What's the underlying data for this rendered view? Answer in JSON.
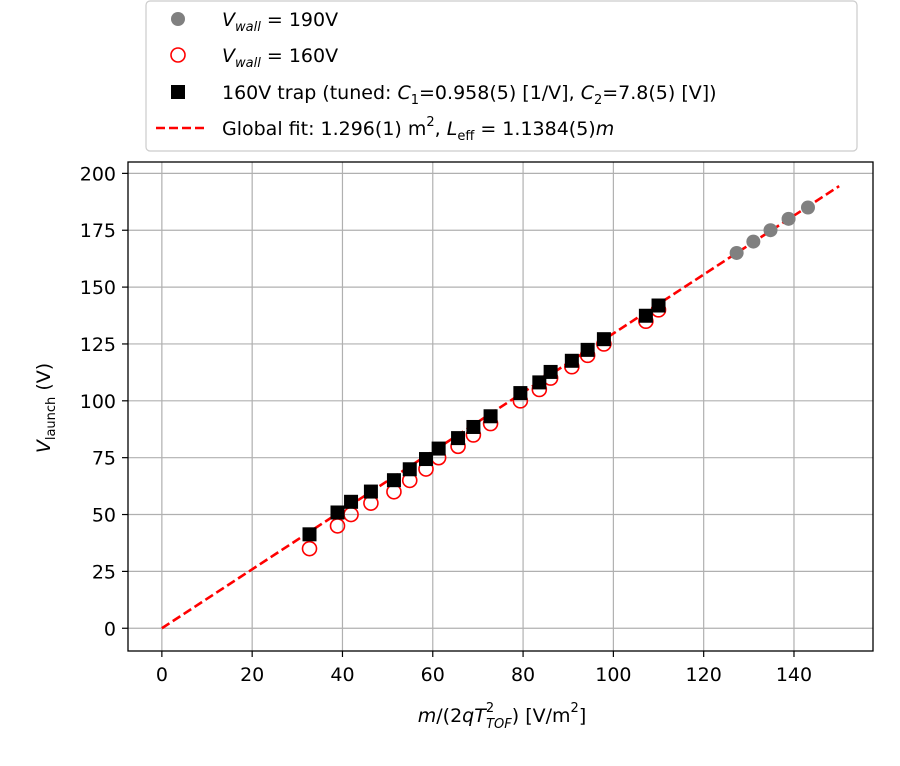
{
  "chart_data": {
    "type": "scatter",
    "title": "",
    "xlabel": "m/(2qT_TOF^2)  [V/m^2]",
    "ylabel": "V_launch (V)",
    "xlim": [
      -7.5,
      157.5
    ],
    "ylim": [
      -10,
      205
    ],
    "grid": true,
    "legend_position": "top-center",
    "x_ticks": [
      0,
      20,
      40,
      60,
      80,
      100,
      120,
      140
    ],
    "y_ticks": [
      0,
      25,
      50,
      75,
      100,
      125,
      150,
      175,
      200
    ],
    "series": [
      {
        "name": "V_wall = 190V",
        "marker": "circle-filled",
        "color": "#808080",
        "x": [
          127.3,
          131.0,
          134.8,
          138.8,
          143.1
        ],
        "y": [
          165,
          170,
          175,
          180,
          185
        ]
      },
      {
        "name": "V_wall = 160V",
        "marker": "circle-open",
        "color": "#ff0000",
        "x": [
          32.7,
          38.9,
          41.9,
          46.3,
          51.4,
          54.9,
          58.5,
          61.3,
          65.6,
          69.0,
          72.8,
          79.4,
          83.6,
          86.1,
          90.8,
          94.3,
          97.9,
          107.2,
          110.0
        ],
        "y": [
          35,
          45,
          50,
          55,
          60,
          65,
          70,
          75,
          80,
          85,
          90,
          100,
          105,
          110,
          115,
          120,
          125,
          135,
          140
        ]
      },
      {
        "name": "160V trap (tuned: C1=0.958(5) [1/V], C2=7.8(5) [V])",
        "marker": "square-filled",
        "color": "#000000",
        "x": [
          32.7,
          38.9,
          41.9,
          46.3,
          51.4,
          54.9,
          58.5,
          61.3,
          65.6,
          69.0,
          72.8,
          79.4,
          83.6,
          86.1,
          90.8,
          94.3,
          97.9,
          107.2,
          110.0
        ],
        "y": [
          41.3,
          50.9,
          55.6,
          60.1,
          65.1,
          69.9,
          74.4,
          79.0,
          83.6,
          88.5,
          93.2,
          103.4,
          108.1,
          112.7,
          117.6,
          122.4,
          127.1,
          137.4,
          141.9
        ]
      },
      {
        "name": "Global fit: 1.296(1) m^2,  L_eff = 1.1384(5)m",
        "marker": "dashed-line",
        "color": "#ff0000",
        "x": [
          0,
          150
        ],
        "y": [
          0,
          194.4
        ]
      }
    ]
  },
  "legend": {
    "entries": [
      {
        "prefix": "V",
        "sub": "wall",
        "rest": " = 190V"
      },
      {
        "prefix": "V",
        "sub": "wall",
        "rest": " = 160V"
      },
      {
        "a": "160V trap (tuned: ",
        "c1": "C",
        "c1sub": "1",
        "b": "=0.958(5) [1/V], ",
        "c2": "C",
        "c2sub": "2",
        "d": "=7.8(5) [V])"
      },
      {
        "a": "Global fit: 1.296(1) m",
        "sup": "2",
        "b": ",  ",
        "l": "L",
        "lsub": "eff",
        "c": " = 1.1384(5)",
        "m": "m"
      }
    ]
  },
  "axis_labels": {
    "x": {
      "m": "m",
      "mid": "/(2",
      "q": "qT",
      "sup": "2",
      "sub": "TOF",
      "tail": ")  [V/m",
      "sup2": "2",
      "end": "]"
    },
    "y": {
      "v": "V",
      "sub": "launch",
      "tail": " (V)"
    }
  }
}
